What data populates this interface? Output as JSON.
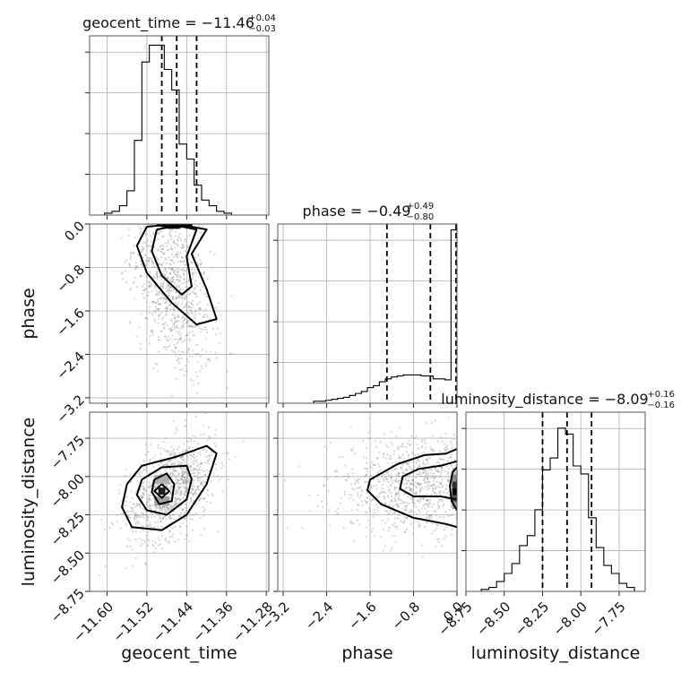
{
  "chart_data": {
    "type": "corner",
    "params": [
      "geocent_time",
      "phase",
      "luminosity_distance"
    ],
    "titles": [
      {
        "param": "geocent_time",
        "label": "geocent_time = −11.46",
        "plus": "+0.04",
        "minus": "−0.03"
      },
      {
        "param": "phase",
        "label": "phase = −0.49",
        "plus": "+0.49",
        "minus": "−0.80"
      },
      {
        "param": "luminosity_distance",
        "label": "luminosity_distance = −8.09",
        "plus": "+0.16",
        "minus": "−0.16"
      }
    ],
    "ranges": {
      "geocent_time": [
        -11.635,
        -11.275
      ],
      "phase": [
        -3.3,
        0.0
      ],
      "luminosity_distance": [
        -8.75,
        -7.58
      ]
    },
    "ticks": {
      "geocent_time": [
        {
          "v": -11.6,
          "label": "−11.60"
        },
        {
          "v": -11.52,
          "label": "−11.52"
        },
        {
          "v": -11.44,
          "label": "−11.44"
        },
        {
          "v": -11.36,
          "label": "−11.36"
        },
        {
          "v": -11.28,
          "label": "−11.28"
        }
      ],
      "phase": [
        {
          "v": -3.2,
          "label": "−3.2"
        },
        {
          "v": -2.4,
          "label": "−2.4"
        },
        {
          "v": -1.6,
          "label": "−1.6"
        },
        {
          "v": -0.8,
          "label": "−0.8"
        },
        {
          "v": 0.0,
          "label": "0.0"
        }
      ],
      "luminosity_distance": [
        {
          "v": -8.75,
          "label": "−8.75"
        },
        {
          "v": -8.5,
          "label": "−8.50"
        },
        {
          "v": -8.25,
          "label": "−8.25"
        },
        {
          "v": -8.0,
          "label": "−8.00"
        },
        {
          "v": -7.75,
          "label": "−7.75"
        }
      ]
    },
    "quantiles": {
      "geocent_time": [
        -11.49,
        -11.46,
        -11.42
      ],
      "phase": [
        -1.29,
        -0.49,
        0.0
      ],
      "luminosity_distance": [
        -8.25,
        -8.09,
        -7.93
      ]
    },
    "histograms": {
      "geocent_time": {
        "edges": [
          -11.635,
          -11.62,
          -11.605,
          -11.59,
          -11.575,
          -11.56,
          -11.545,
          -11.53,
          -11.515,
          -11.5,
          -11.485,
          -11.47,
          -11.455,
          -11.44,
          -11.425,
          -11.41,
          -11.395,
          -11.38,
          -11.365,
          -11.35,
          -11.335,
          -11.32,
          -11.305,
          -11.29,
          -11.275
        ],
        "counts": [
          0,
          0,
          1,
          2,
          5,
          13,
          40,
          82,
          91,
          91,
          78,
          67,
          38,
          30,
          16,
          8,
          5,
          2,
          1,
          0,
          0,
          0,
          0,
          0
        ],
        "ymax": 96
      },
      "phase": {
        "edges": [
          -3.3,
          -3.19,
          -3.08,
          -2.97,
          -2.86,
          -2.75,
          -2.64,
          -2.53,
          -2.42,
          -2.31,
          -2.2,
          -2.09,
          -1.98,
          -1.87,
          -1.76,
          -1.65,
          -1.54,
          -1.43,
          -1.32,
          -1.21,
          -1.1,
          -0.99,
          -0.88,
          -0.77,
          -0.66,
          -0.55,
          -0.44,
          -0.33,
          -0.22,
          -0.11,
          0.0
        ],
        "counts": [
          0,
          0,
          0,
          0,
          0,
          0,
          1,
          1,
          1.5,
          2,
          2.5,
          3,
          4,
          5,
          6,
          8,
          9,
          11,
          12.5,
          13.5,
          14,
          14.5,
          14.5,
          14.5,
          14,
          14,
          12.5,
          12.5,
          12,
          89
        ],
        "ymax": 92
      },
      "luminosity_distance": {
        "edges": [
          -8.75,
          -8.7,
          -8.65,
          -8.6,
          -8.55,
          -8.5,
          -8.45,
          -8.4,
          -8.35,
          -8.3,
          -8.25,
          -8.2,
          -8.15,
          -8.1,
          -8.05,
          -8.0,
          -7.95,
          -7.9,
          -7.85,
          -7.8,
          -7.75,
          -7.7,
          -7.65,
          -7.6
        ],
        "counts": [
          0,
          0,
          1,
          2,
          5,
          9,
          14,
          23,
          28,
          41,
          61,
          67,
          82,
          79,
          63,
          59,
          37,
          22,
          13,
          9,
          4,
          2,
          0
        ],
        "ymax": 90
      }
    },
    "pairs": [
      {
        "x": "geocent_time",
        "y": "phase",
        "scatter": {
          "cx": -11.47,
          "cy": -1.2,
          "sx": 0.04,
          "sy": 0.8,
          "rho": -0.45,
          "n": 900,
          "ymin": -3.3,
          "ymax": 0.0
        },
        "contours": [
          [
            [
              -11.52,
              -0.05
            ],
            [
              -11.46,
              0.0
            ],
            [
              -11.4,
              -0.1
            ],
            [
              -11.43,
              -0.55
            ],
            [
              -11.4,
              -1.2
            ],
            [
              -11.38,
              -1.75
            ],
            [
              -11.42,
              -1.85
            ],
            [
              -11.47,
              -1.45
            ],
            [
              -11.52,
              -0.9
            ],
            [
              -11.54,
              -0.4
            ],
            [
              -11.52,
              -0.05
            ]
          ],
          [
            [
              -11.5,
              -0.1
            ],
            [
              -11.46,
              -0.03
            ],
            [
              -11.42,
              -0.1
            ],
            [
              -11.44,
              -0.6
            ],
            [
              -11.43,
              -1.15
            ],
            [
              -11.45,
              -1.3
            ],
            [
              -11.49,
              -0.95
            ],
            [
              -11.51,
              -0.5
            ],
            [
              -11.5,
              -0.1
            ]
          ],
          [
            [
              -11.5,
              -0.02
            ],
            [
              -11.46,
              0.0
            ],
            [
              -11.43,
              -0.02
            ],
            [
              -11.46,
              -0.07
            ],
            [
              -11.5,
              -0.02
            ]
          ]
        ],
        "density": [
          {
            "x": -11.485,
            "y": -0.045,
            "w": 0.012,
            "h": 0.09,
            "shade": "#909090"
          },
          {
            "x": -11.472,
            "y": -0.045,
            "w": 0.012,
            "h": 0.09,
            "shade": "#141414"
          },
          {
            "x": -11.459,
            "y": -0.045,
            "w": 0.012,
            "h": 0.09,
            "shade": "#606060"
          }
        ]
      },
      {
        "x": "geocent_time",
        "y": "luminosity_distance",
        "scatter": {
          "cx": -11.47,
          "cy": -8.08,
          "sx": 0.045,
          "sy": 0.17,
          "rho": 0.45,
          "n": 1000,
          "ymin": -8.75,
          "ymax": -7.58
        },
        "contours": [
          [
            [
              -11.56,
              -8.05
            ],
            [
              -11.53,
              -7.93
            ],
            [
              -11.46,
              -7.87
            ],
            [
              -11.4,
              -7.8
            ],
            [
              -11.38,
              -7.85
            ],
            [
              -11.4,
              -8.05
            ],
            [
              -11.44,
              -8.25
            ],
            [
              -11.49,
              -8.35
            ],
            [
              -11.55,
              -8.33
            ],
            [
              -11.57,
              -8.2
            ],
            [
              -11.56,
              -8.05
            ]
          ],
          [
            [
              -11.53,
              -8.02
            ],
            [
              -11.49,
              -7.94
            ],
            [
              -11.44,
              -7.93
            ],
            [
              -11.43,
              -8.02
            ],
            [
              -11.44,
              -8.15
            ],
            [
              -11.48,
              -8.25
            ],
            [
              -11.52,
              -8.22
            ],
            [
              -11.54,
              -8.12
            ],
            [
              -11.53,
              -8.02
            ]
          ],
          [
            [
              -11.505,
              -8.02
            ],
            [
              -11.48,
              -7.98
            ],
            [
              -11.465,
              -8.05
            ],
            [
              -11.47,
              -8.16
            ],
            [
              -11.495,
              -8.18
            ],
            [
              -11.51,
              -8.1
            ],
            [
              -11.505,
              -8.02
            ]
          ],
          [
            [
              -11.49,
              -8.05
            ],
            [
              -11.475,
              -8.095
            ],
            [
              -11.49,
              -8.14
            ],
            [
              -11.505,
              -8.095
            ],
            [
              -11.49,
              -8.05
            ]
          ]
        ],
        "density": [
          {
            "x": -11.49,
            "y": -8.095,
            "w": 0.014,
            "h": 0.045,
            "shade": "#1a1a1a"
          },
          {
            "x": -11.49,
            "y": -8.02,
            "w": 0.03,
            "h": 0.06,
            "shade": "#b0b0b0"
          },
          {
            "x": -11.49,
            "y": -8.16,
            "w": 0.03,
            "h": 0.06,
            "shade": "#a0a0a0"
          }
        ]
      },
      {
        "x": "phase",
        "y": "luminosity_distance",
        "scatter": {
          "cx": -0.7,
          "cy": -8.06,
          "sx": 0.8,
          "sy": 0.16,
          "rho": 0.0,
          "n": 1000,
          "xmin": -3.3,
          "xmax": 0.0,
          "ymin": -8.75,
          "ymax": -7.58
        },
        "contours": [
          [
            [
              0.0,
              -7.82
            ],
            [
              -0.2,
              -7.85
            ],
            [
              -0.6,
              -7.86
            ],
            [
              -1.1,
              -7.92
            ],
            [
              -1.6,
              -8.02
            ],
            [
              -1.65,
              -8.09
            ],
            [
              -1.4,
              -8.18
            ],
            [
              -0.8,
              -8.27
            ],
            [
              -0.2,
              -8.31
            ],
            [
              0.0,
              -8.33
            ]
          ],
          [
            [
              0.0,
              -7.9
            ],
            [
              -0.3,
              -7.93
            ],
            [
              -0.7,
              -7.95
            ],
            [
              -1.0,
              -8.0
            ],
            [
              -1.05,
              -8.08
            ],
            [
              -0.8,
              -8.13
            ],
            [
              -0.3,
              -8.13
            ],
            [
              0.0,
              -8.15
            ]
          ],
          [
            [
              0.0,
              -7.94
            ],
            [
              -0.08,
              -7.97
            ],
            [
              -0.13,
              -8.06
            ],
            [
              -0.1,
              -8.16
            ],
            [
              0.0,
              -8.22
            ]
          ]
        ],
        "density": [
          {
            "x": -0.045,
            "y": -7.965,
            "w": 0.09,
            "h": 0.045,
            "shade": "#c8c8c8"
          },
          {
            "x": -0.045,
            "y": -8.01,
            "w": 0.09,
            "h": 0.045,
            "shade": "#8a8a8a"
          },
          {
            "x": -0.045,
            "y": -8.055,
            "w": 0.09,
            "h": 0.045,
            "shade": "#303030"
          },
          {
            "x": -0.045,
            "y": -8.1,
            "w": 0.09,
            "h": 0.045,
            "shade": "#000000"
          },
          {
            "x": -0.045,
            "y": -8.145,
            "w": 0.09,
            "h": 0.045,
            "shade": "#505050"
          },
          {
            "x": -0.045,
            "y": -8.19,
            "w": 0.09,
            "h": 0.045,
            "shade": "#a0a0a0"
          }
        ]
      }
    ],
    "grid": true
  }
}
